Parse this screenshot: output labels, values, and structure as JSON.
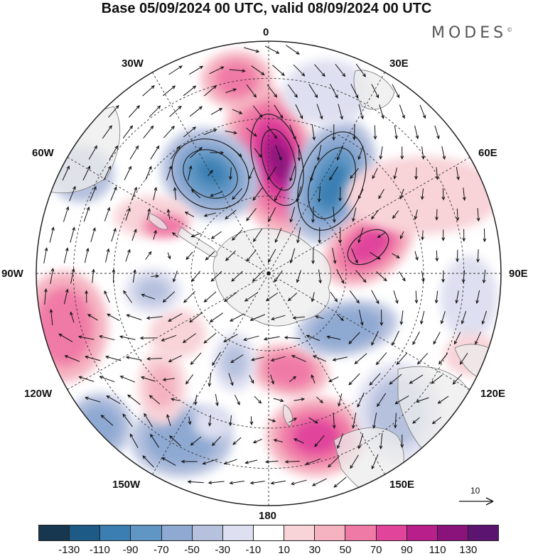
{
  "title": "Base 05/09/2024 00 UTC, valid 08/09/2024 00 UTC",
  "brand": "MODES",
  "brand_mark": "©",
  "longitude_labels": {
    "top": "0",
    "top_left": "30W",
    "top_right": "30E",
    "upper_left": "60W",
    "upper_right": "60E",
    "left": "90W",
    "right": "90E",
    "lower_left": "120W",
    "lower_right": "120E",
    "bottom_left": "150W",
    "bottom_right": "150E",
    "bottom": "180"
  },
  "reference_vector": {
    "label": "10",
    "icon": "right-arrow-icon"
  },
  "colorbar": {
    "ticks": [
      "-130",
      "-110",
      "-90",
      "-70",
      "-50",
      "-30",
      "-10",
      "10",
      "30",
      "50",
      "70",
      "90",
      "110",
      "130"
    ],
    "colors": [
      "#16374f",
      "#1e5a86",
      "#3b7fb2",
      "#6096c4",
      "#8ea9d2",
      "#b6c1de",
      "#dedff0",
      "#ffffff",
      "#f8d3d8",
      "#f5b2c0",
      "#f07aa6",
      "#e0459b",
      "#b81f8a",
      "#8a127b",
      "#5b146f"
    ]
  },
  "map_colors": {
    "land": "#ececec",
    "coast": "#777777",
    "grid": "#333333",
    "vector": "#111111"
  }
}
